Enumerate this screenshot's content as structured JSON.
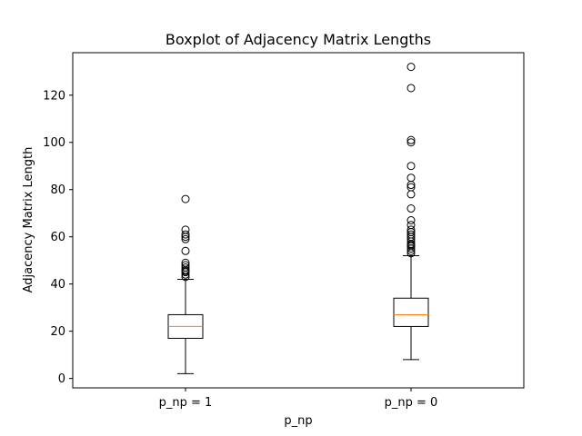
{
  "chart_data": {
    "type": "box",
    "title": "Boxplot of Adjacency Matrix Lengths",
    "xlabel": "p_np",
    "ylabel": "Adjacency Matrix Length",
    "categories": [
      "p_np = 1",
      "p_np = 0"
    ],
    "ylim": [
      -4,
      138
    ],
    "yticks": [
      0,
      20,
      40,
      60,
      80,
      100,
      120
    ],
    "grid": false,
    "boxes": [
      {
        "category": "p_np = 1",
        "whisker_low": 2,
        "q1": 17,
        "median": 22,
        "q3": 27,
        "whisker_high": 42,
        "outliers": [
          43,
          44,
          45,
          45.5,
          46,
          47,
          48,
          49,
          54,
          59,
          60,
          61,
          63,
          76
        ]
      },
      {
        "category": "p_np = 0",
        "whisker_low": 8,
        "q1": 22,
        "median": 27,
        "q3": 34,
        "whisker_high": 52,
        "outliers": [
          53,
          54,
          55,
          56,
          56.5,
          57,
          58,
          59,
          60,
          61,
          62,
          63,
          65,
          67,
          72,
          78,
          81,
          82,
          85,
          90,
          100,
          101,
          123,
          132
        ]
      }
    ],
    "colors": {
      "box": "#000000",
      "median": "#ff7f0e",
      "outlier": "#000000",
      "background": "#ffffff"
    }
  }
}
